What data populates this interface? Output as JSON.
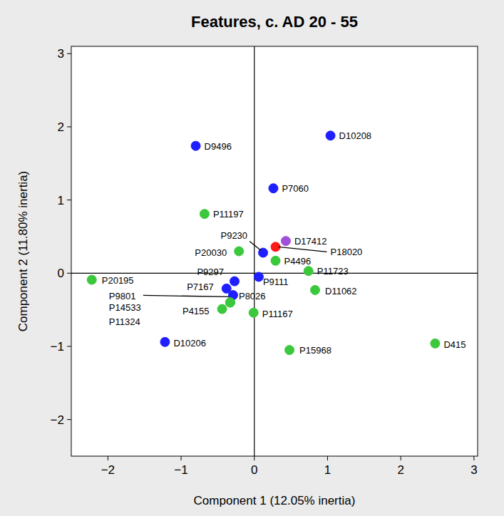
{
  "chart_data": {
    "type": "scatter",
    "title": "Features, c. AD 20 - 55",
    "x_label": "Component 1 (12.05% inertia)",
    "y_label": "Component 2 (11.80% inertia)",
    "xlim": [
      -2.5,
      3.05
    ],
    "ylim": [
      -2.5,
      3.1
    ],
    "xticks": [
      -2,
      -1,
      0,
      1,
      2,
      3
    ],
    "yticks": [
      -2,
      -1,
      0,
      1,
      2,
      3
    ],
    "marker": "circle",
    "labels": [
      "D9496",
      "D10208",
      "P7060",
      "P11197",
      "D17412",
      "P18020",
      "P9230",
      "P20030",
      "P4496",
      "P9111",
      "P11723",
      "D11062",
      "P20195",
      "P9297",
      "P7167",
      "P8026",
      "P9801",
      "P14533",
      "P11324",
      "P4155",
      "P11167",
      "D10206",
      "P15968",
      "D415"
    ],
    "x": [
      -0.8,
      1.04,
      0.26,
      -0.68,
      0.43,
      0.29,
      0.12,
      -0.21,
      0.29,
      0.06,
      0.74,
      0.83,
      -2.22,
      -0.27,
      -0.38,
      -0.29,
      -0.33,
      -0.33,
      -0.33,
      -0.44,
      -0.01,
      -1.22,
      0.48,
      2.47
    ],
    "values": [
      1.74,
      1.88,
      1.16,
      0.81,
      0.44,
      0.36,
      0.28,
      0.3,
      0.17,
      -0.05,
      0.03,
      -0.23,
      -0.09,
      -0.11,
      -0.21,
      -0.3,
      -0.4,
      -0.4,
      -0.4,
      -0.49,
      -0.54,
      -0.94,
      -1.05,
      -0.96
    ],
    "colors": [
      "#1f1fff",
      "#1f1fff",
      "#1f1fff",
      "#3cc83c",
      "#a050d8",
      "#ff1a1a",
      "#1f1fff",
      "#3cc83c",
      "#3cc83c",
      "#1f1fff",
      "#3cc83c",
      "#3cc83c",
      "#3cc83c",
      "#1f1fff",
      "#1f1fff",
      "#1f1fff",
      "#3cc83c",
      "#3cc83c",
      "#3cc83c",
      "#3cc83c",
      "#3cc83c",
      "#1f1fff",
      "#3cc83c",
      "#3cc83c"
    ]
  }
}
